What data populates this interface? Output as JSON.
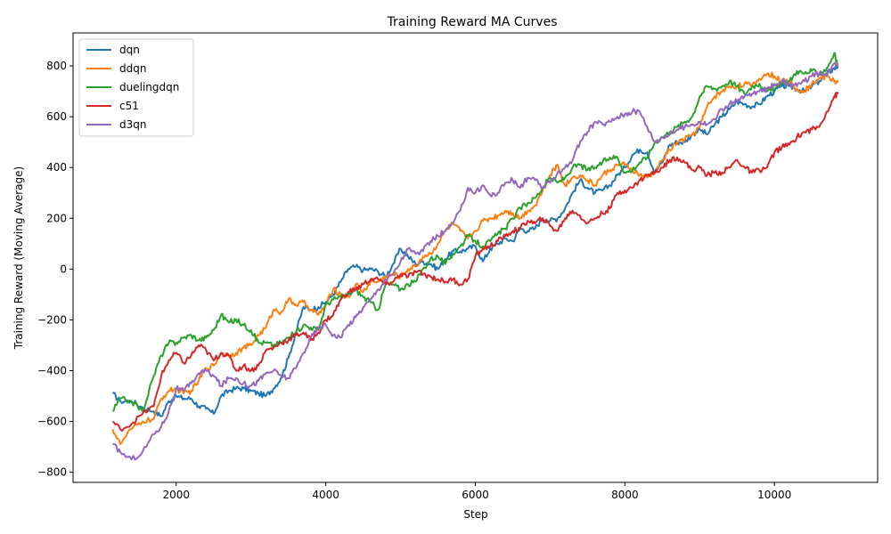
{
  "chart_data": {
    "type": "line",
    "title": "Training Reward MA Curves",
    "xlabel": "Step",
    "ylabel": "Training Reward (Moving Average)",
    "xlim": [
      620,
      11380
    ],
    "ylim": [
      -840,
      930
    ],
    "xticks": [
      2000,
      4000,
      6000,
      8000,
      10000
    ],
    "yticks": [
      -800,
      -600,
      -400,
      -200,
      0,
      200,
      400,
      600,
      800
    ],
    "legend_position": "top-left",
    "grid": false,
    "series": [
      {
        "name": "dqn",
        "color": "#1f77b4",
        "x": [
          1150,
          1250,
          1400,
          1550,
          1700,
          1800,
          1900,
          2000,
          2100,
          2200,
          2300,
          2400,
          2500,
          2600,
          2700,
          2800,
          2900,
          3000,
          3100,
          3200,
          3300,
          3400,
          3500,
          3600,
          3700,
          3800,
          3900,
          4000,
          4100,
          4200,
          4300,
          4400,
          4500,
          4600,
          4700,
          4800,
          4900,
          5000,
          5100,
          5200,
          5300,
          5400,
          5500,
          5600,
          5700,
          5800,
          5900,
          6000,
          6100,
          6200,
          6300,
          6400,
          6500,
          6600,
          6700,
          6800,
          6900,
          7000,
          7100,
          7200,
          7300,
          7400,
          7500,
          7600,
          7700,
          7800,
          7900,
          8000,
          8100,
          8200,
          8300,
          8400,
          8500,
          8600,
          8700,
          8800,
          8900,
          9000,
          9100,
          9200,
          9300,
          9400,
          9500,
          9600,
          9700,
          9800,
          9900,
          10000,
          10100,
          10200,
          10300,
          10400,
          10500,
          10600,
          10700,
          10800,
          10850
        ],
        "y": [
          -490,
          -520,
          -520,
          -545,
          -560,
          -580,
          -520,
          -500,
          -510,
          -510,
          -540,
          -550,
          -570,
          -500,
          -480,
          -470,
          -470,
          -480,
          -490,
          -500,
          -470,
          -430,
          -350,
          -250,
          -150,
          -160,
          -150,
          -130,
          -100,
          -50,
          0,
          10,
          -5,
          0,
          -10,
          -30,
          20,
          80,
          50,
          20,
          30,
          20,
          0,
          40,
          70,
          70,
          80,
          90,
          30,
          80,
          100,
          120,
          110,
          160,
          150,
          160,
          200,
          190,
          200,
          240,
          300,
          350,
          320,
          300,
          310,
          330,
          370,
          400,
          450,
          470,
          460,
          380,
          420,
          490,
          500,
          500,
          530,
          550,
          530,
          570,
          600,
          630,
          660,
          650,
          640,
          650,
          680,
          700,
          720,
          720,
          710,
          700,
          720,
          740,
          770,
          790,
          800
        ]
      },
      {
        "name": "ddqn",
        "color": "#ff7f0e",
        "x": [
          1150,
          1250,
          1400,
          1550,
          1700,
          1800,
          1900,
          2000,
          2100,
          2200,
          2300,
          2400,
          2500,
          2600,
          2700,
          2800,
          2900,
          3000,
          3100,
          3200,
          3300,
          3400,
          3500,
          3600,
          3700,
          3800,
          3900,
          4000,
          4100,
          4200,
          4300,
          4400,
          4500,
          4600,
          4700,
          4800,
          4900,
          5000,
          5100,
          5200,
          5300,
          5400,
          5500,
          5600,
          5700,
          5800,
          5900,
          6000,
          6100,
          6200,
          6300,
          6400,
          6500,
          6600,
          6700,
          6800,
          6900,
          7000,
          7100,
          7200,
          7300,
          7400,
          7500,
          7600,
          7700,
          7800,
          7900,
          8000,
          8100,
          8200,
          8300,
          8400,
          8500,
          8600,
          8700,
          8800,
          8900,
          9000,
          9100,
          9200,
          9300,
          9400,
          9500,
          9600,
          9700,
          9800,
          9900,
          10000,
          10100,
          10200,
          10300,
          10400,
          10500,
          10600,
          10700,
          10800,
          10850
        ],
        "y": [
          -630,
          -690,
          -630,
          -600,
          -590,
          -510,
          -480,
          -470,
          -490,
          -480,
          -440,
          -390,
          -380,
          -330,
          -340,
          -330,
          -310,
          -300,
          -260,
          -230,
          -160,
          -170,
          -120,
          -140,
          -130,
          -160,
          -180,
          -140,
          -80,
          -100,
          -110,
          -60,
          -90,
          -50,
          -50,
          -30,
          -20,
          -30,
          0,
          10,
          50,
          60,
          100,
          150,
          180,
          150,
          120,
          150,
          190,
          200,
          210,
          230,
          220,
          200,
          230,
          250,
          310,
          370,
          410,
          330,
          360,
          370,
          350,
          330,
          370,
          390,
          410,
          410,
          390,
          370,
          360,
          380,
          430,
          470,
          500,
          510,
          530,
          560,
          640,
          680,
          700,
          720,
          720,
          730,
          720,
          750,
          770,
          760,
          740,
          740,
          710,
          700,
          730,
          750,
          760,
          740,
          735
        ]
      },
      {
        "name": "duelingdqn",
        "color": "#2ca02c",
        "x": [
          1150,
          1250,
          1400,
          1550,
          1700,
          1800,
          1900,
          2000,
          2100,
          2200,
          2300,
          2400,
          2500,
          2600,
          2700,
          2800,
          2900,
          3000,
          3100,
          3200,
          3300,
          3400,
          3500,
          3600,
          3700,
          3800,
          3900,
          4000,
          4100,
          4200,
          4300,
          4400,
          4500,
          4600,
          4700,
          4800,
          4900,
          5000,
          5100,
          5200,
          5300,
          5400,
          5500,
          5600,
          5700,
          5800,
          5900,
          6000,
          6100,
          6200,
          6300,
          6400,
          6500,
          6600,
          6700,
          6800,
          6900,
          7000,
          7100,
          7200,
          7300,
          7400,
          7500,
          7600,
          7700,
          7800,
          7900,
          8000,
          8100,
          8200,
          8300,
          8400,
          8500,
          8600,
          8700,
          8800,
          8900,
          9000,
          9100,
          9200,
          9300,
          9400,
          9500,
          9600,
          9700,
          9800,
          9900,
          10000,
          10100,
          10200,
          10300,
          10400,
          10500,
          10600,
          10700,
          10800,
          10850
        ],
        "y": [
          -560,
          -510,
          -520,
          -560,
          -420,
          -340,
          -290,
          -290,
          -270,
          -260,
          -280,
          -270,
          -240,
          -180,
          -210,
          -200,
          -220,
          -240,
          -290,
          -290,
          -300,
          -290,
          -270,
          -250,
          -220,
          -230,
          -240,
          -140,
          -120,
          -110,
          -100,
          -80,
          -110,
          -130,
          -160,
          -60,
          -60,
          -80,
          -60,
          -50,
          0,
          40,
          50,
          20,
          60,
          90,
          130,
          110,
          90,
          110,
          140,
          160,
          200,
          240,
          260,
          280,
          320,
          360,
          340,
          360,
          400,
          410,
          390,
          400,
          420,
          440,
          440,
          380,
          390,
          420,
          440,
          500,
          520,
          540,
          560,
          580,
          600,
          680,
          720,
          710,
          720,
          740,
          720,
          690,
          720,
          730,
          700,
          710,
          730,
          740,
          780,
          770,
          780,
          770,
          790,
          850,
          800
        ]
      },
      {
        "name": "c51",
        "color": "#d62728",
        "x": [
          1150,
          1250,
          1400,
          1550,
          1700,
          1800,
          1900,
          2000,
          2100,
          2200,
          2300,
          2400,
          2500,
          2600,
          2700,
          2800,
          2900,
          3000,
          3100,
          3200,
          3300,
          3400,
          3500,
          3600,
          3700,
          3800,
          3900,
          4000,
          4100,
          4200,
          4300,
          4400,
          4500,
          4600,
          4700,
          4800,
          4900,
          5000,
          5100,
          5200,
          5300,
          5400,
          5500,
          5600,
          5700,
          5800,
          5900,
          6000,
          6100,
          6200,
          6300,
          6400,
          6500,
          6600,
          6700,
          6800,
          6900,
          7000,
          7100,
          7200,
          7300,
          7400,
          7500,
          7600,
          7700,
          7800,
          7900,
          8000,
          8100,
          8200,
          8300,
          8400,
          8500,
          8600,
          8700,
          8800,
          8900,
          9000,
          9100,
          9200,
          9300,
          9400,
          9500,
          9600,
          9700,
          9800,
          9900,
          10000,
          10100,
          10200,
          10300,
          10400,
          10500,
          10600,
          10700,
          10800,
          10850
        ],
        "y": [
          -600,
          -630,
          -610,
          -570,
          -540,
          -420,
          -360,
          -330,
          -370,
          -340,
          -300,
          -320,
          -360,
          -330,
          -340,
          -400,
          -380,
          -400,
          -380,
          -320,
          -310,
          -290,
          -280,
          -260,
          -250,
          -280,
          -250,
          -200,
          -180,
          -120,
          -90,
          -80,
          -60,
          -40,
          -40,
          -60,
          -50,
          -20,
          -30,
          -10,
          -20,
          -30,
          -40,
          -50,
          -40,
          -60,
          -40,
          50,
          80,
          90,
          110,
          130,
          150,
          160,
          190,
          180,
          200,
          170,
          150,
          200,
          230,
          210,
          180,
          200,
          220,
          240,
          300,
          310,
          320,
          350,
          370,
          380,
          400,
          430,
          440,
          420,
          390,
          400,
          370,
          380,
          380,
          400,
          430,
          400,
          380,
          390,
          400,
          460,
          480,
          490,
          520,
          540,
          550,
          560,
          620,
          680,
          690
        ]
      },
      {
        "name": "d3qn",
        "color": "#9467bd",
        "x": [
          1150,
          1250,
          1400,
          1550,
          1700,
          1800,
          1900,
          2000,
          2100,
          2200,
          2300,
          2400,
          2500,
          2600,
          2700,
          2800,
          2900,
          3000,
          3100,
          3200,
          3300,
          3400,
          3500,
          3600,
          3700,
          3800,
          3900,
          4000,
          4100,
          4200,
          4300,
          4400,
          4500,
          4600,
          4700,
          4800,
          4900,
          5000,
          5100,
          5200,
          5300,
          5400,
          5500,
          5600,
          5700,
          5800,
          5900,
          6000,
          6100,
          6200,
          6300,
          6400,
          6500,
          6600,
          6700,
          6800,
          6900,
          7000,
          7100,
          7200,
          7300,
          7400,
          7500,
          7600,
          7700,
          7800,
          7900,
          8000,
          8100,
          8200,
          8300,
          8400,
          8500,
          8600,
          8700,
          8800,
          8900,
          9000,
          9100,
          9200,
          9300,
          9400,
          9500,
          9600,
          9700,
          9800,
          9900,
          10000,
          10100,
          10200,
          10300,
          10400,
          10500,
          10600,
          10700,
          10800,
          10850
        ],
        "y": [
          -690,
          -720,
          -750,
          -720,
          -650,
          -620,
          -560,
          -470,
          -480,
          -450,
          -410,
          -400,
          -420,
          -460,
          -430,
          -430,
          -450,
          -460,
          -440,
          -410,
          -400,
          -420,
          -430,
          -390,
          -330,
          -270,
          -230,
          -220,
          -260,
          -270,
          -220,
          -190,
          -150,
          -120,
          -80,
          -40,
          -20,
          30,
          80,
          60,
          70,
          110,
          130,
          150,
          180,
          230,
          320,
          300,
          330,
          290,
          300,
          340,
          350,
          320,
          360,
          350,
          320,
          340,
          380,
          400,
          430,
          500,
          540,
          580,
          570,
          580,
          600,
          610,
          620,
          620,
          560,
          500,
          520,
          530,
          550,
          560,
          570,
          580,
          570,
          590,
          630,
          650,
          660,
          680,
          690,
          700,
          710,
          730,
          740,
          730,
          720,
          740,
          760,
          770,
          760,
          810,
          810
        ]
      }
    ]
  }
}
